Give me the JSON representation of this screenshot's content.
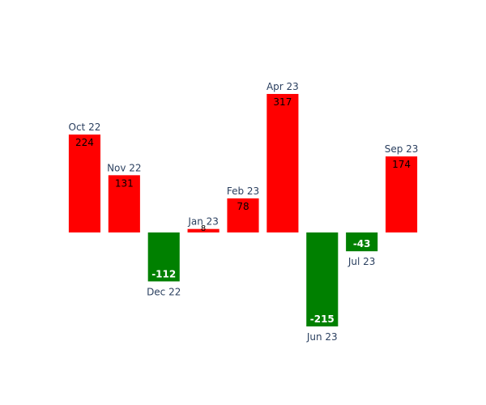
{
  "chart_data": {
    "type": "bar",
    "categories": [
      "Oct 22",
      "Nov 22",
      "Dec 22",
      "Jan 23",
      "Feb 23",
      "Apr 23",
      "Jun 23",
      "Jul 23",
      "Sep 23"
    ],
    "values": [
      224,
      131,
      -112,
      8,
      78,
      317,
      -215,
      -43,
      174
    ],
    "value_labels": [
      "224",
      "131",
      "-112",
      "8",
      "78",
      "317",
      "-215",
      "-43",
      "174"
    ],
    "title": "",
    "xlabel": "",
    "ylabel": "",
    "grid": false,
    "legend": "none",
    "colors": {
      "positive": "#ff0000",
      "negative": "#008000",
      "positive_label": "#000000",
      "negative_label": "#ffffff",
      "category_label": "#2a3f5f"
    }
  }
}
